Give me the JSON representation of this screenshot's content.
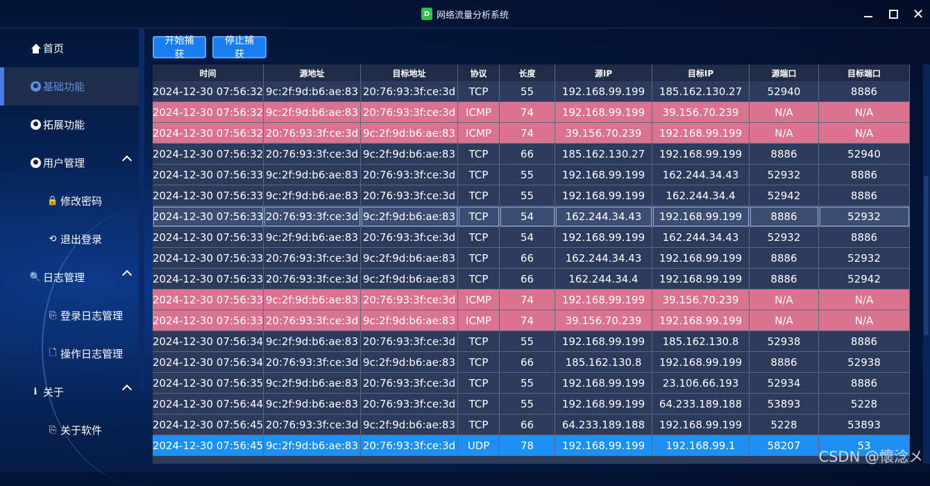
{
  "window": {
    "title": "网络流量分析系统",
    "icon": "D"
  },
  "sidebar": {
    "items": [
      {
        "label": "首页",
        "icon": "home-icon"
      },
      {
        "label": "基础功能",
        "icon": "user-circle-icon",
        "active": true
      },
      {
        "label": "拓展功能",
        "icon": "user-circle-icon"
      },
      {
        "label": "用户管理",
        "icon": "user-circle-icon",
        "expanded": true
      },
      {
        "label": "修改密码",
        "icon": "lock-icon"
      },
      {
        "label": "退出登录",
        "icon": "logout-icon"
      },
      {
        "label": "日志管理",
        "icon": "log-search-icon",
        "expanded": true
      },
      {
        "label": "登录日志管理",
        "icon": "file-login-icon"
      },
      {
        "label": "操作日志管理",
        "icon": "file-search-icon"
      },
      {
        "label": "关于",
        "icon": "info-icon",
        "expanded": true
      },
      {
        "label": "关于软件",
        "icon": "file-login-icon"
      }
    ]
  },
  "toolbar": {
    "start_label": "开始捕获",
    "stop_label": "停止捕获"
  },
  "table": {
    "headers": [
      "时间",
      "源地址",
      "目标地址",
      "协议",
      "长度",
      "源IP",
      "目标IP",
      "源端口",
      "目标端口"
    ],
    "rows": [
      [
        "2024-12-30 07:56:32",
        "9c:2f:9d:b6:ae:83",
        "20:76:93:3f:ce:3d",
        "TCP",
        "55",
        "192.168.99.199",
        "185.162.130.27",
        "52940",
        "8886"
      ],
      [
        "2024-12-30 07:56:32",
        "9c:2f:9d:b6:ae:83",
        "20:76:93:3f:ce:3d",
        "ICMP",
        "74",
        "192.168.99.199",
        "39.156.70.239",
        "N/A",
        "N/A"
      ],
      [
        "2024-12-30 07:56:32",
        "20:76:93:3f:ce:3d",
        "9c:2f:9d:b6:ae:83",
        "ICMP",
        "74",
        "39.156.70.239",
        "192.168.99.199",
        "N/A",
        "N/A"
      ],
      [
        "2024-12-30 07:56:32",
        "20:76:93:3f:ce:3d",
        "9c:2f:9d:b6:ae:83",
        "TCP",
        "66",
        "185.162.130.27",
        "192.168.99.199",
        "8886",
        "52940"
      ],
      [
        "2024-12-30 07:56:33",
        "9c:2f:9d:b6:ae:83",
        "20:76:93:3f:ce:3d",
        "TCP",
        "55",
        "192.168.99.199",
        "162.244.34.43",
        "52932",
        "8886"
      ],
      [
        "2024-12-30 07:56:33",
        "9c:2f:9d:b6:ae:83",
        "20:76:93:3f:ce:3d",
        "TCP",
        "55",
        "192.168.99.199",
        "162.244.34.4",
        "52942",
        "8886"
      ],
      [
        "2024-12-30 07:56:33",
        "20:76:93:3f:ce:3d",
        "9c:2f:9d:b6:ae:83",
        "TCP",
        "54",
        "162.244.34.43",
        "192.168.99.199",
        "8886",
        "52932"
      ],
      [
        "2024-12-30 07:56:33",
        "9c:2f:9d:b6:ae:83",
        "20:76:93:3f:ce:3d",
        "TCP",
        "54",
        "192.168.99.199",
        "162.244.34.43",
        "52932",
        "8886"
      ],
      [
        "2024-12-30 07:56:33",
        "20:76:93:3f:ce:3d",
        "9c:2f:9d:b6:ae:83",
        "TCP",
        "66",
        "162.244.34.43",
        "192.168.99.199",
        "8886",
        "52932"
      ],
      [
        "2024-12-30 07:56:33",
        "20:76:93:3f:ce:3d",
        "9c:2f:9d:b6:ae:83",
        "TCP",
        "66",
        "162.244.34.4",
        "192.168.99.199",
        "8886",
        "52942"
      ],
      [
        "2024-12-30 07:56:33",
        "9c:2f:9d:b6:ae:83",
        "20:76:93:3f:ce:3d",
        "ICMP",
        "74",
        "192.168.99.199",
        "39.156.70.239",
        "N/A",
        "N/A"
      ],
      [
        "2024-12-30 07:56:33",
        "20:76:93:3f:ce:3d",
        "9c:2f:9d:b6:ae:83",
        "ICMP",
        "74",
        "39.156.70.239",
        "192.168.99.199",
        "N/A",
        "N/A"
      ],
      [
        "2024-12-30 07:56:34",
        "9c:2f:9d:b6:ae:83",
        "20:76:93:3f:ce:3d",
        "TCP",
        "55",
        "192.168.99.199",
        "185.162.130.8",
        "52938",
        "8886"
      ],
      [
        "2024-12-30 07:56:34",
        "20:76:93:3f:ce:3d",
        "9c:2f:9d:b6:ae:83",
        "TCP",
        "66",
        "185.162.130.8",
        "192.168.99.199",
        "8886",
        "52938"
      ],
      [
        "2024-12-30 07:56:35",
        "9c:2f:9d:b6:ae:83",
        "20:76:93:3f:ce:3d",
        "TCP",
        "55",
        "192.168.99.199",
        "23.106.66.193",
        "52934",
        "8886"
      ],
      [
        "2024-12-30 07:56:44",
        "9c:2f:9d:b6:ae:83",
        "20:76:93:3f:ce:3d",
        "TCP",
        "55",
        "192.168.99.199",
        "64.233.189.188",
        "53893",
        "5228"
      ],
      [
        "2024-12-30 07:56:45",
        "20:76:93:3f:ce:3d",
        "9c:2f:9d:b6:ae:83",
        "TCP",
        "66",
        "64.233.189.188",
        "192.168.99.199",
        "5228",
        "53893"
      ],
      [
        "2024-12-30 07:56:45",
        "9c:2f:9d:b6:ae:83",
        "20:76:93:3f:ce:3d",
        "UDP",
        "78",
        "192.168.99.199",
        "192.168.99.1",
        "58207",
        "53"
      ]
    ],
    "selected_row": 6,
    "colors": {
      "ICMP": "#d9738f",
      "UDP": "#1e90f5",
      "default": "#2c3a5c",
      "selected": "#3c4d72"
    }
  },
  "watermark": "CSDN @懷淰メ"
}
